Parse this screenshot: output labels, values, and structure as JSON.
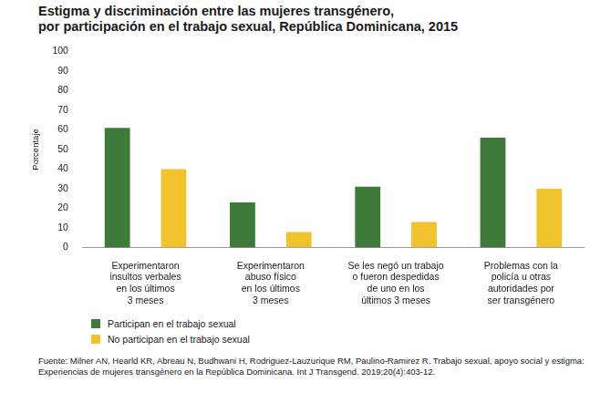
{
  "chart_data": {
    "type": "bar",
    "title": [
      "Estigma y discriminación entre las mujeres transgénero,",
      "por participación en el trabajo sexual, República Dominicana, 2015"
    ],
    "y_label": "Porcentaje",
    "categories": [
      [
        "Experimentaron",
        "insultos verbales",
        "en los últimos",
        "3 meses"
      ],
      [
        "Experimentaron",
        "abuso físico",
        "en los últimos",
        "3 meses"
      ],
      [
        "Se les negó un trabajo",
        "o fueron despedidas",
        "de uno en los",
        "últimos 3 meses"
      ],
      [
        "Problemas con la",
        "policía u otras",
        "autoridades por",
        "ser transgénero"
      ]
    ],
    "series": [
      {
        "name": "Participan en el trabajo sexual",
        "color": "#3e7b3b",
        "values": [
          61,
          23,
          31,
          56
        ]
      },
      {
        "name": "No participan en el trabajo sexual",
        "color": "#f0c22b",
        "values": [
          40,
          8,
          13,
          30
        ]
      }
    ],
    "ylim": [
      0,
      100
    ],
    "yticks": [
      0,
      10,
      20,
      30,
      40,
      50,
      60,
      70,
      80,
      90,
      100
    ],
    "grid": false,
    "legend": "bottom-left",
    "source": "Fuente: Milner AN, Hearld KR, Abreau N, Budhwani H, Rodriguez-Lauzurique RM, Paulino-Ramirez R. Trabajo sexual, apoyo social y estigma: Experiencias de mujeres transgénero en la República Dominicana. Int J Transgend. 2019;20(4):403-12."
  }
}
